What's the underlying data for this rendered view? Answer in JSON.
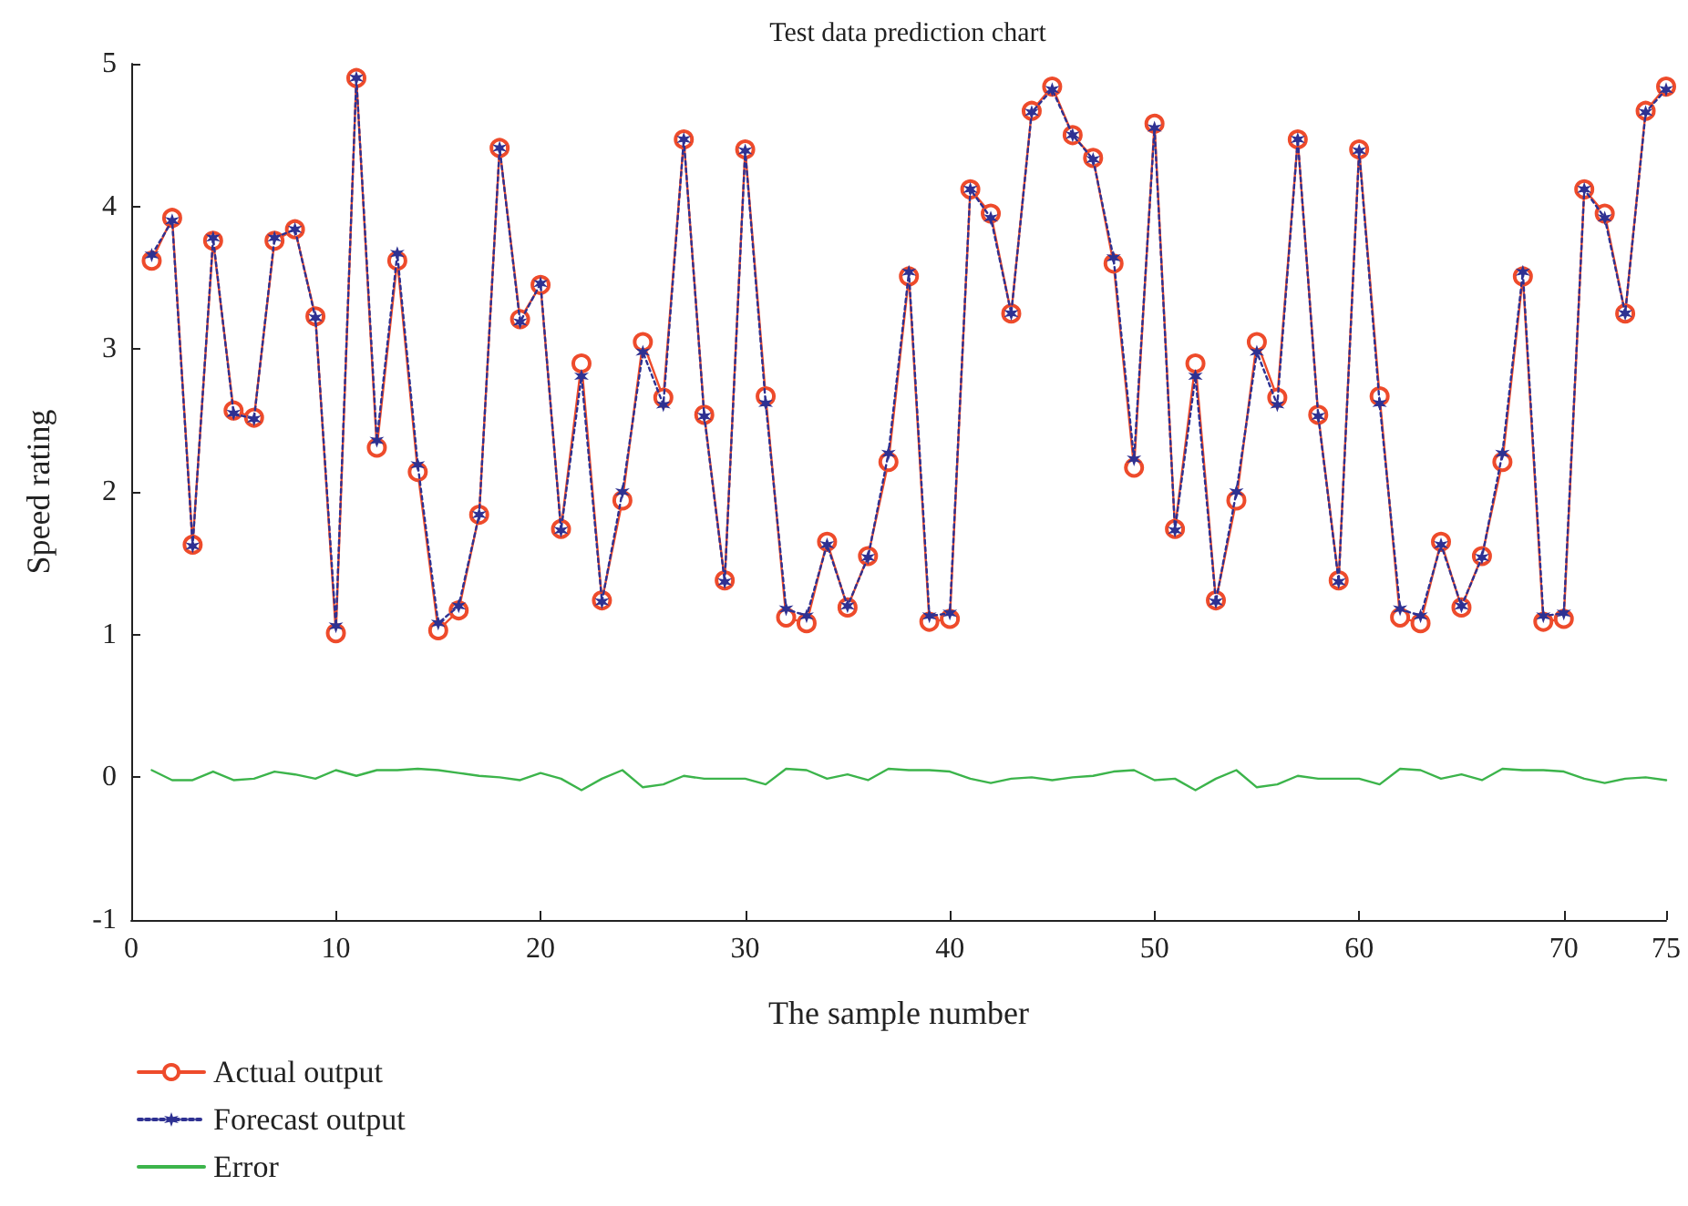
{
  "chart_data": {
    "type": "line",
    "title": "Test data prediction chart",
    "xlabel": "The sample number",
    "ylabel": "Speed rating",
    "x": [
      1,
      2,
      3,
      4,
      5,
      6,
      7,
      8,
      9,
      10,
      11,
      12,
      13,
      14,
      15,
      16,
      17,
      18,
      19,
      20,
      21,
      22,
      23,
      24,
      25,
      26,
      27,
      28,
      29,
      30,
      31,
      32,
      33,
      34,
      35,
      36,
      37,
      38,
      39,
      40,
      41,
      42,
      43,
      44,
      45,
      46,
      47,
      48,
      49,
      50,
      51,
      52,
      53,
      54,
      55,
      56,
      57,
      58,
      59,
      60,
      61,
      62,
      63,
      64,
      65,
      66,
      67,
      68,
      69,
      70,
      71,
      72,
      73,
      74,
      75
    ],
    "series": [
      {
        "name": "Actual output",
        "color": "#ee4b2b",
        "marker": "circle",
        "line_style": "solid",
        "values": [
          3.62,
          3.92,
          1.63,
          3.76,
          2.57,
          2.52,
          3.76,
          3.84,
          3.23,
          1.01,
          4.9,
          2.31,
          3.62,
          2.14,
          1.03,
          1.17,
          1.84,
          4.41,
          3.21,
          3.45,
          1.74,
          2.9,
          1.24,
          1.94,
          3.05,
          2.66,
          4.47,
          2.54,
          1.38,
          4.4,
          2.67,
          1.12,
          1.08,
          1.65,
          1.19,
          1.55,
          2.21,
          3.51,
          1.09,
          1.11,
          4.12,
          3.95,
          3.25,
          4.67,
          4.84,
          4.5,
          4.34,
          3.6,
          2.17,
          4.58,
          1.74,
          2.9,
          1.24,
          1.94,
          3.05,
          2.66,
          4.47,
          2.54,
          1.38,
          4.4,
          2.67,
          1.12,
          1.08,
          1.65,
          1.19,
          1.55,
          2.21,
          3.51,
          1.09,
          1.11,
          4.12,
          3.95,
          3.25,
          4.67,
          4.84
        ]
      },
      {
        "name": "Forecast output",
        "color": "#2e3192",
        "marker": "cross",
        "line_style": "dotted",
        "values": [
          3.66,
          3.9,
          1.62,
          3.78,
          2.55,
          2.51,
          3.78,
          3.84,
          3.22,
          1.06,
          4.9,
          2.36,
          3.67,
          2.19,
          1.08,
          1.2,
          1.84,
          4.41,
          3.19,
          3.46,
          1.73,
          2.81,
          1.23,
          2.0,
          2.98,
          2.61,
          4.47,
          2.53,
          1.37,
          4.39,
          2.62,
          1.18,
          1.13,
          1.63,
          1.2,
          1.54,
          2.27,
          3.54,
          1.13,
          1.15,
          4.12,
          3.92,
          3.25,
          4.66,
          4.82,
          4.5,
          4.33,
          3.64,
          2.23,
          4.55,
          1.73,
          2.81,
          1.23,
          2.0,
          2.98,
          2.61,
          4.47,
          2.53,
          1.37,
          4.39,
          2.62,
          1.18,
          1.13,
          1.63,
          1.2,
          1.54,
          2.27,
          3.54,
          1.13,
          1.15,
          4.12,
          3.92,
          3.25,
          4.66,
          4.82
        ]
      },
      {
        "name": "Error",
        "color": "#3cb44b",
        "marker": "none",
        "line_style": "solid",
        "values": [
          0.05,
          -0.02,
          -0.02,
          0.04,
          -0.02,
          -0.01,
          0.04,
          0.02,
          -0.01,
          0.05,
          0.01,
          0.05,
          0.05,
          0.06,
          0.05,
          0.03,
          0.01,
          0,
          -0.02,
          0.03,
          -0.01,
          -0.09,
          -0.01,
          0.05,
          -0.07,
          -0.05,
          0.01,
          -0.01,
          -0.01,
          -0.01,
          -0.05,
          0.06,
          0.05,
          -0.01,
          0.02,
          -0.02,
          0.06,
          0.05,
          0.05,
          0.04,
          -0.01,
          -0.04,
          -0.01,
          0,
          -0.02,
          0,
          0.01,
          0.04,
          0.05,
          -0.02,
          -0.01,
          -0.09,
          -0.01,
          0.05,
          -0.07,
          -0.05,
          0.01,
          -0.01,
          -0.01,
          -0.01,
          -0.05,
          0.06,
          0.05,
          -0.01,
          0.02,
          -0.02,
          0.06,
          0.05,
          0.05,
          0.04,
          -0.01,
          -0.04,
          -0.01,
          0,
          -0.02
        ]
      }
    ],
    "xlim": [
      0,
      75
    ],
    "xticks": [
      0,
      10,
      20,
      30,
      40,
      50,
      60,
      70,
      75
    ],
    "ylim": [
      -1,
      5
    ],
    "yticks": [
      -1,
      0,
      1,
      2,
      3,
      4,
      5
    ],
    "grid": false,
    "legend": "bottom left"
  }
}
